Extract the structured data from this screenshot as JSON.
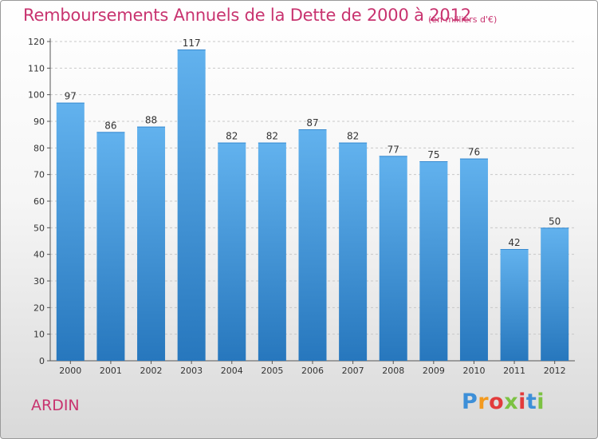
{
  "title": "Remboursements Annuels de la Dette de 2000 à 2012",
  "subtitle": "(en milliers d'€)",
  "commune": "ARDIN",
  "logo": {
    "letters": [
      "P",
      "r",
      "o",
      "x",
      "i",
      "t",
      "i"
    ],
    "colors": [
      "#3d8fd8",
      "#f39a1e",
      "#e23b3b",
      "#7cc242",
      "#e23b3b",
      "#3d8fd8",
      "#7cc242"
    ]
  },
  "colors": {
    "title": "#c8336f",
    "bar_light": "#62b2ee",
    "bar_dark": "#2777bd",
    "gridline": "#c8c8c8"
  },
  "chart_data": {
    "type": "bar",
    "title": "Remboursements Annuels de la Dette de 2000 à 2012",
    "subtitle": "(en milliers d'€)",
    "xlabel": "",
    "ylabel": "",
    "categories": [
      "2000",
      "2001",
      "2002",
      "2003",
      "2004",
      "2005",
      "2006",
      "2007",
      "2008",
      "2009",
      "2010",
      "2011",
      "2012"
    ],
    "values": [
      97,
      86,
      88,
      117,
      82,
      82,
      87,
      82,
      77,
      75,
      76,
      42,
      50
    ],
    "ylim": [
      0,
      120
    ],
    "yticks": [
      0,
      10,
      20,
      30,
      40,
      50,
      60,
      70,
      80,
      90,
      100,
      110,
      120
    ],
    "grid": true,
    "legend": "none"
  }
}
